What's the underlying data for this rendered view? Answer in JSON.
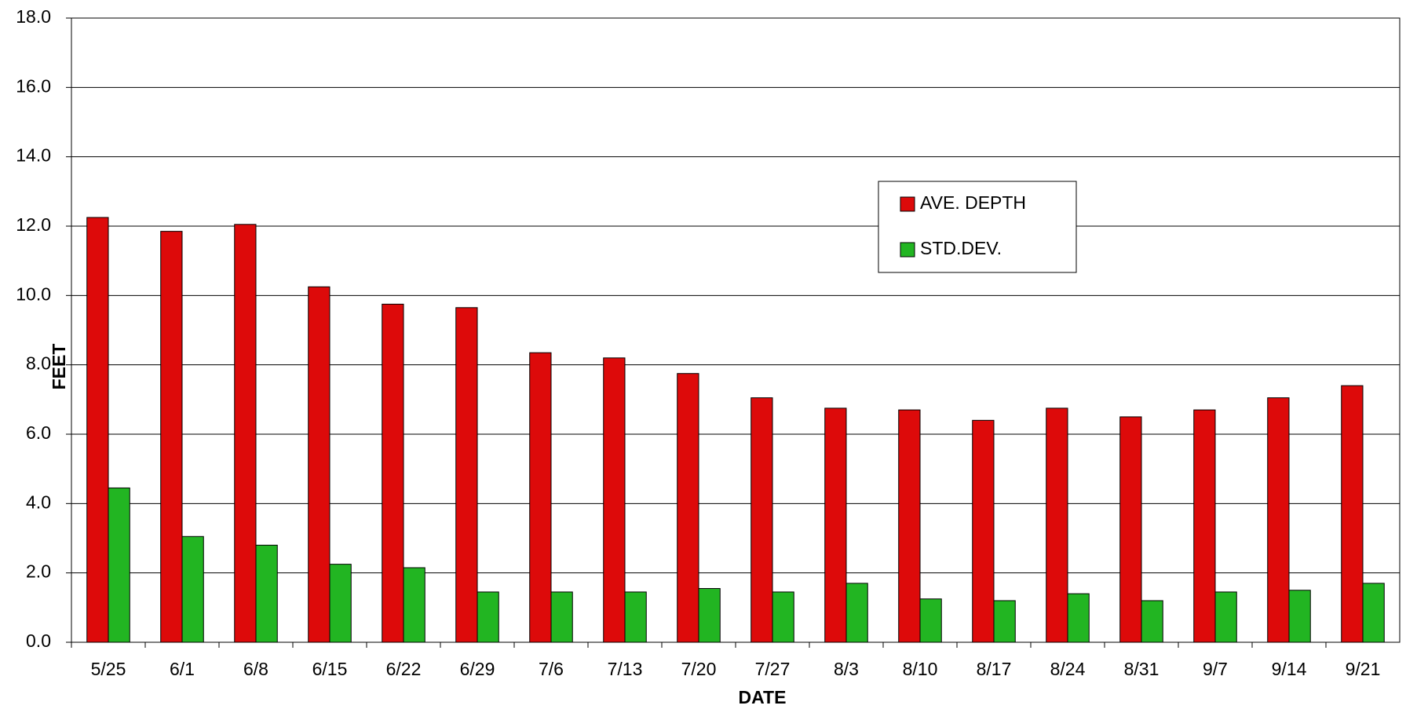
{
  "chart_data": {
    "type": "bar",
    "x_label": "DATE",
    "y_label": "FEET",
    "categories": [
      "5/25",
      "6/1",
      "6/8",
      "6/15",
      "6/22",
      "6/29",
      "7/6",
      "7/13",
      "7/20",
      "7/27",
      "8/3",
      "8/10",
      "8/17",
      "8/24",
      "8/31",
      "9/7",
      "9/14",
      "9/21"
    ],
    "series": [
      {
        "name": "AVE. DEPTH",
        "color": "#dd0a0a",
        "values": [
          12.25,
          11.85,
          12.05,
          10.25,
          9.75,
          9.65,
          8.35,
          8.2,
          7.75,
          7.05,
          6.75,
          6.7,
          6.4,
          6.75,
          6.5,
          6.7,
          7.05,
          7.4
        ]
      },
      {
        "name": "STD.DEV.",
        "color": "#22b522",
        "values": [
          4.45,
          3.05,
          2.8,
          2.25,
          2.15,
          1.45,
          1.45,
          1.45,
          1.55,
          1.45,
          1.7,
          1.25,
          1.2,
          1.4,
          1.2,
          1.45,
          1.5,
          1.7
        ]
      }
    ],
    "ylim": [
      0,
      18
    ],
    "yticks": [
      {
        "value": 0,
        "label": "0.0"
      },
      {
        "value": 2,
        "label": "2.0"
      },
      {
        "value": 4,
        "label": "4.0"
      },
      {
        "value": 6,
        "label": "6.0"
      },
      {
        "value": 8,
        "label": "8.0"
      },
      {
        "value": 10,
        "label": "10.0"
      },
      {
        "value": 12,
        "label": "12.0"
      },
      {
        "value": 14,
        "label": "14.0"
      },
      {
        "value": 16,
        "label": "16.0"
      },
      {
        "value": 18,
        "label": "18.0"
      }
    ],
    "grid": true
  }
}
